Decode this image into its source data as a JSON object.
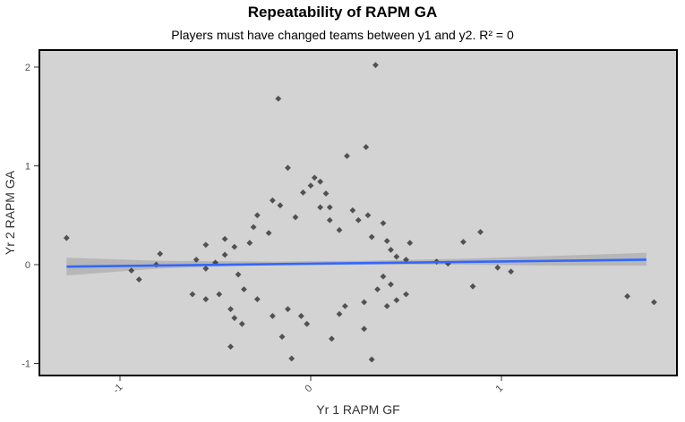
{
  "chart_data": {
    "type": "scatter",
    "title": "Repeatability of RAPM GA",
    "subtitle": "Players must have changed teams between y1 and y2. R² = 0",
    "xlabel": "Yr 1 RAPM GF",
    "ylabel": "Yr 2 RAPM GA",
    "xlim": [
      -1.4,
      1.9
    ],
    "ylim": [
      -1.1,
      2.1
    ],
    "x_ticks": [
      -1,
      0,
      1
    ],
    "x_tick_labels": [
      "-1",
      "0",
      "1"
    ],
    "y_ticks": [
      -1,
      0,
      1,
      2
    ],
    "y_tick_labels": [
      "-1",
      "0",
      "1",
      "2"
    ],
    "grid": false,
    "colors": {
      "panel": "#d3d3d3",
      "points": "#1a1a1a",
      "trend_line": "#3366ff",
      "confidence_band": "#b0b0b0"
    },
    "trend": {
      "x": [
        -1.28,
        1.76
      ],
      "y": [
        -0.02,
        0.05
      ]
    },
    "band": {
      "x": [
        -1.28,
        -0.8,
        -0.2,
        0.3,
        0.8,
        1.3,
        1.76
      ],
      "lower": [
        -0.11,
        -0.04,
        0.0,
        0.0,
        0.0,
        -0.01,
        -0.01
      ],
      "upper": [
        0.07,
        0.04,
        0.03,
        0.04,
        0.06,
        0.09,
        0.12
      ]
    },
    "points": [
      [
        0.34,
        2.02
      ],
      [
        -0.17,
        1.68
      ],
      [
        0.29,
        1.19
      ],
      [
        0.19,
        1.1
      ],
      [
        -0.12,
        0.98
      ],
      [
        0.02,
        0.88
      ],
      [
        0.05,
        0.84
      ],
      [
        0.0,
        0.8
      ],
      [
        -0.04,
        0.73
      ],
      [
        0.08,
        0.72
      ],
      [
        -0.2,
        0.65
      ],
      [
        -0.16,
        0.6
      ],
      [
        -1.28,
        0.27
      ],
      [
        0.89,
        0.33
      ],
      [
        0.8,
        0.23
      ],
      [
        0.52,
        0.22
      ],
      [
        -0.79,
        0.11
      ],
      [
        -0.55,
        0.2
      ],
      [
        -0.45,
        0.26
      ],
      [
        -0.94,
        -0.06
      ],
      [
        -0.9,
        -0.15
      ],
      [
        -0.81,
        0.0
      ],
      [
        -0.55,
        -0.04
      ],
      [
        -0.6,
        0.05
      ],
      [
        0.66,
        0.03
      ],
      [
        0.72,
        0.01
      ],
      [
        0.98,
        -0.03
      ],
      [
        1.05,
        -0.07
      ],
      [
        0.85,
        -0.22
      ],
      [
        0.5,
        -0.3
      ],
      [
        0.35,
        -0.25
      ],
      [
        1.66,
        -0.32
      ],
      [
        1.8,
        -0.38
      ],
      [
        -0.55,
        -0.35
      ],
      [
        -0.48,
        -0.3
      ],
      [
        -0.42,
        -0.45
      ],
      [
        -0.4,
        -0.54
      ],
      [
        -0.36,
        -0.6
      ],
      [
        -0.42,
        -0.83
      ],
      [
        -0.1,
        -0.95
      ],
      [
        0.32,
        -0.96
      ],
      [
        0.15,
        -0.5
      ],
      [
        0.4,
        -0.42
      ],
      [
        -0.2,
        -0.52
      ],
      [
        -0.15,
        -0.73
      ],
      [
        0.11,
        -0.75
      ],
      [
        -0.02,
        -0.6
      ],
      [
        -0.05,
        -0.52
      ],
      [
        0.28,
        -0.65
      ],
      [
        0.45,
        -0.36
      ],
      [
        -0.62,
        -0.3
      ],
      [
        -0.35,
        -0.25
      ],
      [
        0.1,
        0.58
      ],
      [
        0.22,
        0.55
      ],
      [
        0.3,
        0.5
      ],
      [
        0.38,
        0.42
      ],
      [
        -0.28,
        0.5
      ],
      [
        -0.3,
        0.38
      ],
      [
        0.25,
        0.45
      ],
      [
        0.1,
        0.45
      ],
      [
        -0.08,
        0.48
      ],
      [
        0.05,
        0.58
      ],
      [
        0.15,
        0.35
      ],
      [
        -0.22,
        0.32
      ],
      [
        0.32,
        0.28
      ],
      [
        0.4,
        0.24
      ],
      [
        -0.4,
        0.18
      ],
      [
        -0.32,
        0.22
      ],
      [
        0.42,
        0.15
      ],
      [
        0.45,
        0.08
      ],
      [
        -0.45,
        0.1
      ],
      [
        0.5,
        0.05
      ],
      [
        -0.5,
        0.02
      ],
      [
        -0.38,
        -0.1
      ],
      [
        0.38,
        -0.12
      ],
      [
        0.42,
        -0.2
      ],
      [
        -0.28,
        -0.35
      ],
      [
        0.28,
        -0.38
      ],
      [
        0.18,
        -0.42
      ],
      [
        -0.12,
        -0.45
      ]
    ]
  }
}
